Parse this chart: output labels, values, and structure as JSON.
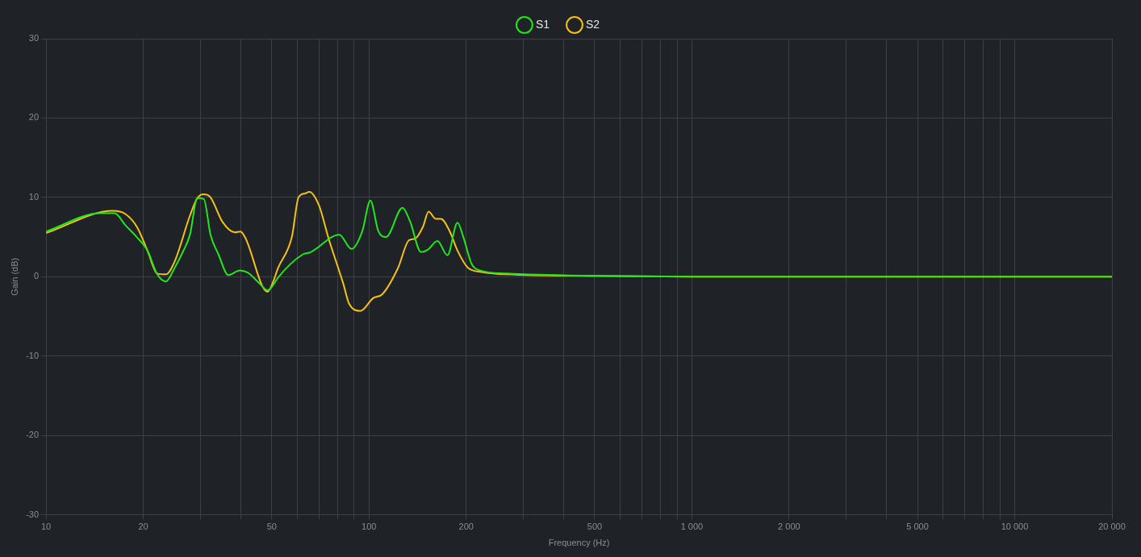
{
  "chart_data": {
    "type": "line",
    "xlabel": "Frequency (Hz)",
    "ylabel": "Gain (dB)",
    "log": "x",
    "grid": true,
    "legend": "top",
    "marker": "none",
    "line_style": "solid",
    "xlim": [
      10,
      20000
    ],
    "ylim": [
      -30,
      30
    ],
    "xticks": [
      {
        "value": 10,
        "label": "10"
      },
      {
        "value": 20,
        "label": "20"
      },
      {
        "value": 30,
        "label": null
      },
      {
        "value": 40,
        "label": null
      },
      {
        "value": 50,
        "label": "50"
      },
      {
        "value": 60,
        "label": null
      },
      {
        "value": 70,
        "label": null
      },
      {
        "value": 80,
        "label": null
      },
      {
        "value": 90,
        "label": null
      },
      {
        "value": 100,
        "label": "100"
      },
      {
        "value": 200,
        "label": "200"
      },
      {
        "value": 300,
        "label": null
      },
      {
        "value": 400,
        "label": null
      },
      {
        "value": 500,
        "label": "500"
      },
      {
        "value": 600,
        "label": null
      },
      {
        "value": 700,
        "label": null
      },
      {
        "value": 800,
        "label": null
      },
      {
        "value": 900,
        "label": null
      },
      {
        "value": 1000,
        "label": "1 000"
      },
      {
        "value": 2000,
        "label": "2 000"
      },
      {
        "value": 3000,
        "label": null
      },
      {
        "value": 4000,
        "label": null
      },
      {
        "value": 5000,
        "label": "5 000"
      },
      {
        "value": 6000,
        "label": null
      },
      {
        "value": 7000,
        "label": null
      },
      {
        "value": 8000,
        "label": null
      },
      {
        "value": 9000,
        "label": null
      },
      {
        "value": 10000,
        "label": "10 000"
      },
      {
        "value": 20000,
        "label": "20 000"
      }
    ],
    "yticks": [
      -30,
      -20,
      -10,
      0,
      10,
      20,
      30
    ],
    "series": [
      {
        "name": "S1",
        "color": "#22e61e",
        "x": [
          10,
          14.7,
          16.3,
          17.6,
          19.0,
          20.6,
          22.1,
          23.5,
          25.0,
          26.5,
          27.9,
          29.4,
          30.8,
          32.3,
          34.2,
          36.7,
          39.8,
          42.2,
          45.7,
          48.5,
          50.2,
          52.3,
          62.3,
          66.0,
          80.9,
          88.3,
          95.3,
          101,
          107,
          113,
          127,
          134,
          145,
          152,
          163,
          175,
          188,
          196,
          208,
          220,
          267,
          500,
          1000,
          20000
        ],
        "values": [
          5.7,
          8.0,
          8.0,
          6.5,
          5.1,
          3.3,
          0.3,
          -0.6,
          1.1,
          3.1,
          5.3,
          9.9,
          9.8,
          5.3,
          2.8,
          0.2,
          0.8,
          0.5,
          -0.8,
          -1.7,
          -1.2,
          -0.1,
          2.8,
          3.1,
          5.3,
          3.5,
          5.7,
          9.6,
          5.7,
          5.0,
          8.7,
          7.0,
          3.1,
          3.4,
          4.5,
          2.7,
          6.8,
          5.0,
          1.6,
          0.8,
          0.4,
          0.1,
          0,
          0
        ]
      },
      {
        "name": "S2",
        "color": "#f5c116",
        "x": [
          10,
          16.1,
          17.6,
          19.1,
          20.6,
          22.1,
          23.5,
          25.0,
          27.9,
          29.4,
          30.8,
          32.3,
          35.2,
          38.4,
          40.0,
          41.4,
          48.5,
          50.2,
          52.3,
          57.7,
          60.5,
          63.4,
          65.3,
          70.0,
          75.0,
          83.3,
          86.8,
          94.2,
          103,
          110,
          123,
          133,
          139,
          147,
          153,
          161,
          167,
          178,
          188,
          203,
          224,
          267,
          500,
          1000,
          20000
        ],
        "values": [
          5.5,
          8.3,
          7.9,
          6.3,
          3.3,
          0.4,
          0.3,
          1.9,
          7.7,
          9.9,
          10.4,
          10.0,
          6.9,
          5.6,
          5.7,
          4.9,
          -1.9,
          -0.9,
          1.1,
          5.0,
          10.0,
          10.5,
          10.7,
          9.0,
          4.8,
          -0.9,
          -3.4,
          -4.3,
          -2.7,
          -2.2,
          1.1,
          4.6,
          4.8,
          6.3,
          8.2,
          7.3,
          7.3,
          5.7,
          3.3,
          1.1,
          0.6,
          0.3,
          0.1,
          0,
          0
        ]
      }
    ]
  }
}
